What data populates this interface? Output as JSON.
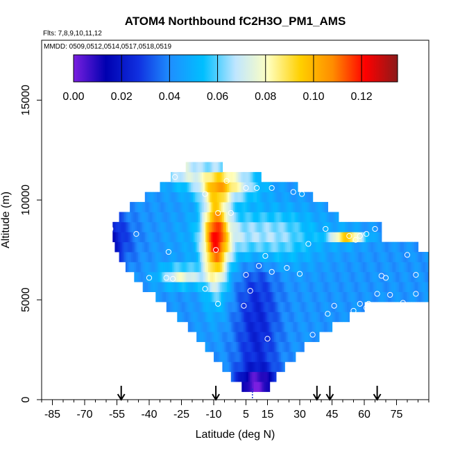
{
  "header": {
    "title": "ATOM4 Northbound fC2H3O_PM1_AMS",
    "flights": "Flts: 7,8,9,10,11,12",
    "dates": "MMDD: 0509,0512,0514,0517,0518,0519"
  },
  "chart_data": {
    "type": "heatmap",
    "title": "ATOM4 Northbound fC2H3O_PM1_AMS",
    "xlabel": "Latitude (deg N)",
    "ylabel": "Altitude (m)",
    "xlim": [
      -90,
      90
    ],
    "ylim": [
      0,
      18000
    ],
    "x_ticks": [
      -85,
      -70,
      -55,
      -40,
      -25,
      -10,
      5,
      15,
      30,
      45,
      60,
      75
    ],
    "x_minor_step": 5,
    "y_ticks": [
      0,
      5000,
      10000,
      15000
    ],
    "colorbar": {
      "min": 0.0,
      "max": 0.135,
      "ticks": [
        0.0,
        0.02,
        0.04,
        0.06,
        0.08,
        0.1,
        0.12
      ],
      "tick_labels": [
        "0.00",
        "0.02",
        "0.04",
        "0.06",
        "0.08",
        "0.10",
        "0.12"
      ],
      "colors": [
        "#7a1fe0",
        "#0000b0",
        "#1030e0",
        "#1e90ff",
        "#00bfff",
        "#bfe6ff",
        "#ffffc0",
        "#ffd000",
        "#ff8c00",
        "#ff0000",
        "#8b1a1a"
      ]
    },
    "arrows_latitude": [
      -53,
      -9,
      38,
      44,
      66
    ],
    "dashed_marker_latitude": 8,
    "points": [
      [
        -28,
        11150
      ],
      [
        -4,
        10950
      ],
      [
        5,
        10600
      ],
      [
        10,
        10600
      ],
      [
        17,
        10600
      ],
      [
        27,
        10400
      ],
      [
        -14,
        10300
      ],
      [
        31,
        10300
      ],
      [
        -8,
        9350
      ],
      [
        -2,
        9350
      ],
      [
        42,
        8550
      ],
      [
        53,
        8200
      ],
      [
        58,
        8200
      ],
      [
        61,
        8300
      ],
      [
        65,
        8550
      ],
      [
        56,
        8000
      ],
      [
        -46,
        8300
      ],
      [
        -58,
        8550
      ],
      [
        -31,
        7400
      ],
      [
        -9,
        7500
      ],
      [
        34,
        7800
      ],
      [
        14,
        7200
      ],
      [
        80,
        7250
      ],
      [
        11,
        6700
      ],
      [
        24,
        6600
      ],
      [
        17,
        6400
      ],
      [
        5,
        6250
      ],
      [
        30,
        6300
      ],
      [
        68,
        6200
      ],
      [
        84,
        6250
      ],
      [
        -40,
        6100
      ],
      [
        -32,
        6100
      ],
      [
        -29,
        6050
      ],
      [
        70,
        6100
      ],
      [
        -14,
        5550
      ],
      [
        7,
        5450
      ],
      [
        72,
        5250
      ],
      [
        66,
        5300
      ],
      [
        84,
        5300
      ],
      [
        -8,
        4800
      ],
      [
        4,
        4700
      ],
      [
        46,
        4700
      ],
      [
        58,
        4800
      ],
      [
        62,
        4800
      ],
      [
        78,
        4850
      ],
      [
        61,
        4600
      ],
      [
        55,
        4450
      ],
      [
        43,
        4300
      ],
      [
        36,
        3250
      ],
      [
        15,
        3050
      ]
    ]
  }
}
